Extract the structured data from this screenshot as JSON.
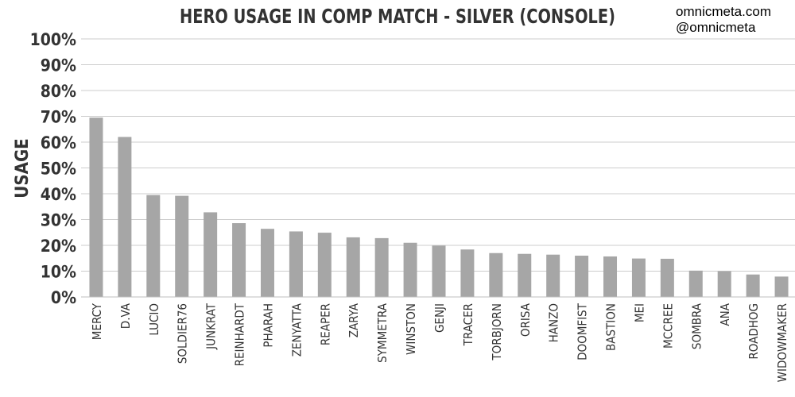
{
  "chart_data": {
    "type": "bar",
    "title": "HERO USAGE IN COMP MATCH - SILVER (CONSOLE)",
    "ylabel": "USAGE",
    "xlabel": "",
    "ylim": [
      0,
      100
    ],
    "yticks": [
      "0%",
      "10%",
      "20%",
      "30%",
      "40%",
      "50%",
      "60%",
      "70%",
      "80%",
      "90%",
      "100%"
    ],
    "grid": true,
    "bar_color": "#a6a6a6",
    "categories": [
      "MERCY",
      "D.VA",
      "LUCIO",
      "SOLDIER76",
      "JUNKRAT",
      "REINHARDT",
      "PHARAH",
      "ZENYATTA",
      "REAPER",
      "ZARYA",
      "SYMMETRA",
      "WINSTON",
      "GENJI",
      "TRACER",
      "TORBJORN",
      "ORISA",
      "HANZO",
      "DOOMFIST",
      "BASTION",
      "MEI",
      "MCCREE",
      "SOMBRA",
      "ANA",
      "ROADHOG",
      "WIDOWMAKER"
    ],
    "values": [
      69.5,
      62,
      39.5,
      39.2,
      32.8,
      28.6,
      26.4,
      25.4,
      24.9,
      23.1,
      22.8,
      21,
      19.9,
      18.4,
      17,
      16.7,
      16.4,
      16,
      15.7,
      14.9,
      14.8,
      10.2,
      10,
      8.7,
      7.9
    ]
  },
  "credit": {
    "line1": "omnicmeta.com",
    "line2": "@omnicmeta"
  }
}
